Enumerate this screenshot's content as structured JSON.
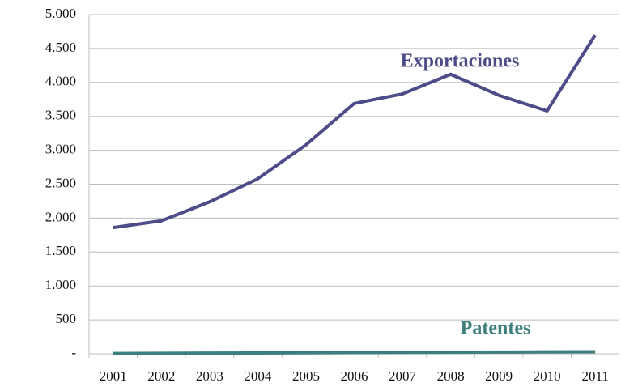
{
  "chart_data": {
    "type": "line",
    "categories": [
      "2001",
      "2002",
      "2003",
      "2004",
      "2005",
      "2006",
      "2007",
      "2008",
      "2009",
      "2010",
      "2011"
    ],
    "series": [
      {
        "name": "Exportaciones",
        "color": "#4e4c88",
        "values": [
          1860,
          1960,
          2240,
          2580,
          3080,
          3690,
          3830,
          4120,
          3810,
          3580,
          4700
        ]
      },
      {
        "name": "Patentes",
        "color": "#3c7f7d",
        "values": [
          5,
          8,
          10,
          12,
          15,
          18,
          20,
          22,
          25,
          28,
          30
        ]
      }
    ],
    "ylim": [
      0,
      5000
    ],
    "yticks": [
      {
        "value": 0,
        "label": "-"
      },
      500,
      {
        "value": 1000,
        "label": "1.000"
      },
      {
        "value": 1500,
        "label": "1.500"
      },
      {
        "value": 2000,
        "label": "2.000"
      },
      {
        "value": 2500,
        "label": "2.500"
      },
      {
        "value": 3000,
        "label": "3.000"
      },
      {
        "value": 3500,
        "label": "3.500"
      },
      {
        "value": 4000,
        "label": "4.000"
      },
      {
        "value": 4500,
        "label": "4.500"
      },
      {
        "value": 5000,
        "label": "5.000"
      }
    ],
    "grid": true
  }
}
